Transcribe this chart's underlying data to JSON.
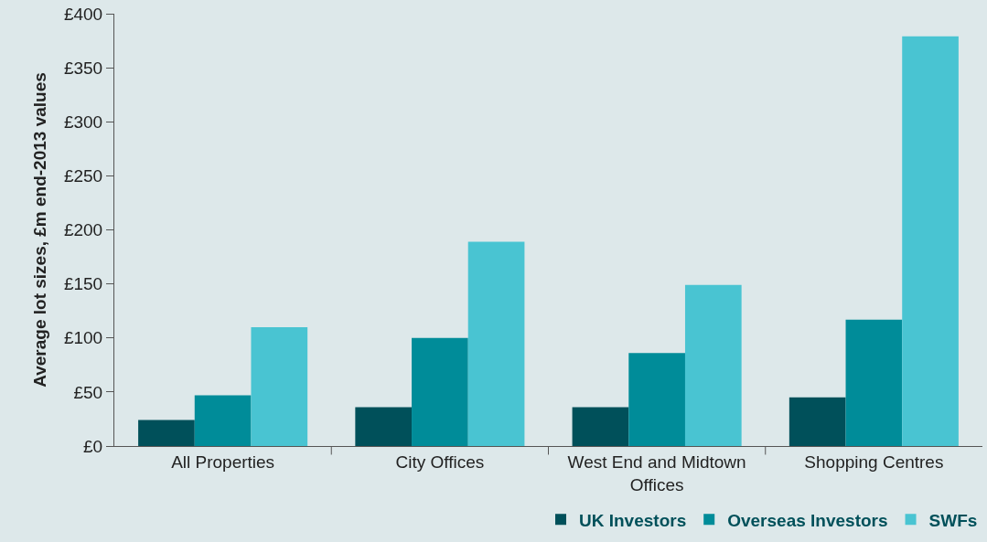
{
  "chart_data": {
    "type": "bar",
    "ylabel": "Average lot sizes, £m end-2013 values",
    "categories": [
      "All Properties",
      "City Offices",
      "West End and Midtown Offices",
      "Shopping Centres"
    ],
    "series": [
      {
        "name": "UK Investors",
        "color": "#00505a",
        "values": [
          24,
          36,
          36,
          45
        ]
      },
      {
        "name": "Overseas Investors",
        "color": "#008c99",
        "values": [
          47,
          100,
          86,
          117
        ]
      },
      {
        "name": "SWFs",
        "color": "#49c4d2",
        "values": [
          110,
          189,
          149,
          379
        ]
      }
    ],
    "ylim": [
      0,
      400
    ],
    "yticks": [
      {
        "value": 0,
        "label": "£0"
      },
      {
        "value": 50,
        "label": "£50"
      },
      {
        "value": 100,
        "label": "£100"
      },
      {
        "value": 150,
        "label": "£150"
      },
      {
        "value": 200,
        "label": "£200"
      },
      {
        "value": 250,
        "label": "£250"
      },
      {
        "value": 300,
        "label": "£300"
      },
      {
        "value": 350,
        "label": "£350"
      },
      {
        "value": 400,
        "label": "£400"
      }
    ],
    "grid": false,
    "legend": "bottom right"
  }
}
